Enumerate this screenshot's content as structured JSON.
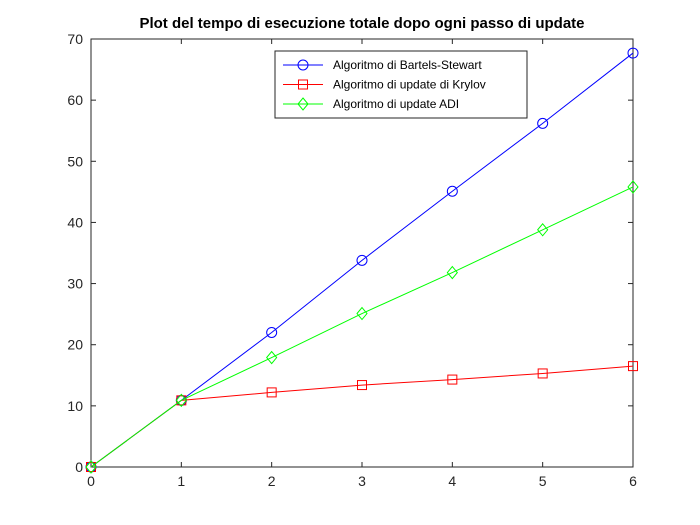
{
  "chart_data": {
    "type": "line",
    "title": "Plot del tempo di esecuzione totale dopo ogni passo di update",
    "xlabel": "",
    "ylabel": "",
    "xlim": [
      0,
      6
    ],
    "ylim": [
      0,
      70
    ],
    "x_ticks": [
      0,
      1,
      2,
      3,
      4,
      5,
      6
    ],
    "y_ticks": [
      0,
      10,
      20,
      30,
      40,
      50,
      60,
      70
    ],
    "grid": false,
    "legend_position": "top-right",
    "series": [
      {
        "name": "Algoritmo di Bartels-Stewart",
        "color": "#0000ff",
        "marker": "circle",
        "x": [
          0,
          1,
          2,
          3,
          4,
          5,
          6
        ],
        "y": [
          0,
          10.9,
          22.0,
          33.8,
          45.1,
          56.2,
          67.7
        ]
      },
      {
        "name": "Algoritmo di update di Krylov",
        "color": "#ff0000",
        "marker": "square",
        "x": [
          0,
          1,
          2,
          3,
          4,
          5,
          6
        ],
        "y": [
          0,
          10.9,
          12.2,
          13.4,
          14.3,
          15.3,
          16.5
        ]
      },
      {
        "name": "Algoritmo di update ADI",
        "color": "#00ff00",
        "marker": "diamond",
        "x": [
          0,
          1,
          2,
          3,
          4,
          5,
          6
        ],
        "y": [
          0,
          10.9,
          17.9,
          25.1,
          31.8,
          38.8,
          45.8
        ]
      }
    ]
  }
}
